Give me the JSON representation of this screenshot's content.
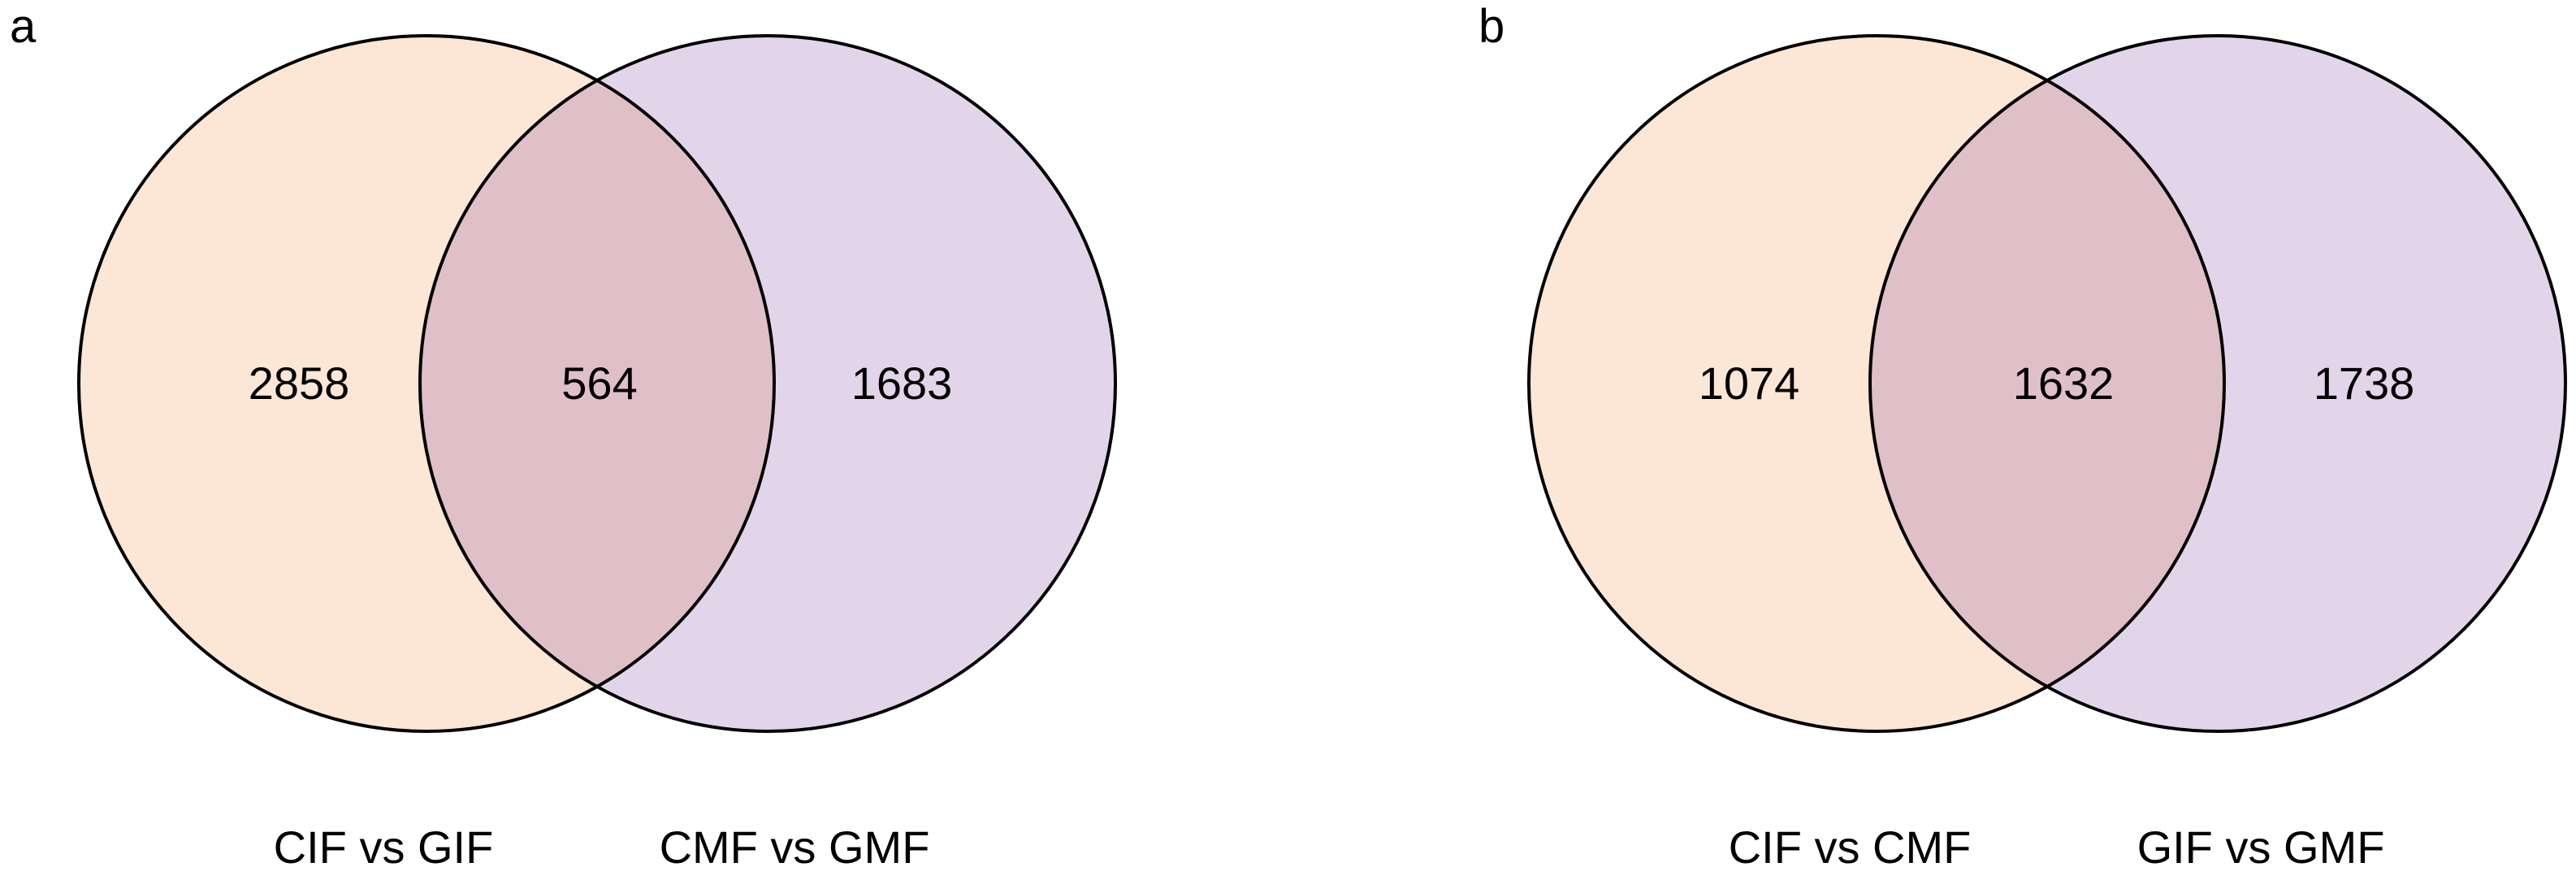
{
  "colors": {
    "set_a_fill": "#fce6d6",
    "set_b_fill": "#e2d5ea",
    "overlap_fill": "#dfc0c8",
    "outline": "#000000"
  },
  "panels": [
    {
      "letter": "a",
      "left_only": "2858",
      "overlap": "564",
      "right_only": "1683",
      "left_set": "CIF vs GIF",
      "right_set": "CMF vs GMF"
    },
    {
      "letter": "b",
      "left_only": "1074",
      "overlap": "1632",
      "right_only": "1738",
      "left_set": "CIF vs CMF",
      "right_set": "GIF vs GMF"
    }
  ]
}
